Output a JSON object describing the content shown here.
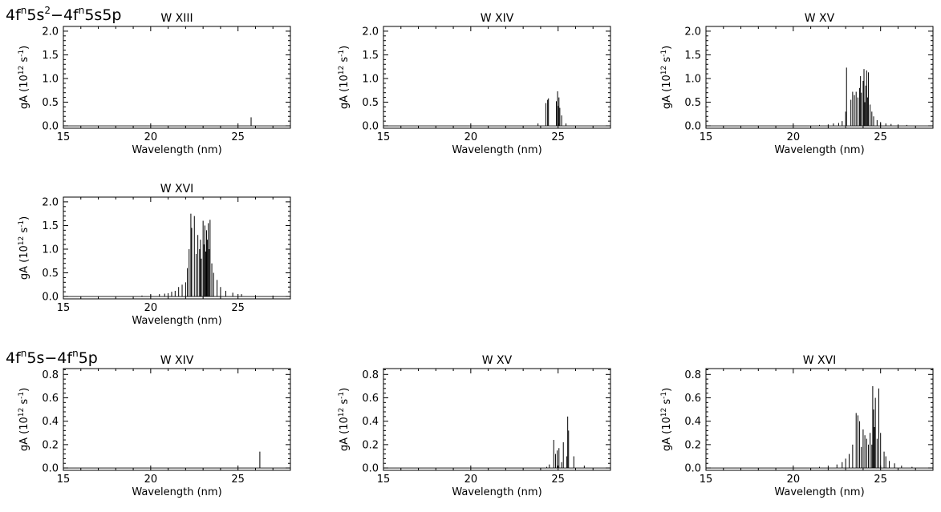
{
  "figure": {
    "group_labels": [
      {
        "base": "4f",
        "sup1": "n",
        "mid1": "5s",
        "sup2": "2",
        "mid2": "−4f",
        "sup3": "n",
        "tail": "5s5p"
      },
      {
        "base": "4f",
        "sup1": "n",
        "mid1": "5s−4f",
        "sup2": "n",
        "mid2": "5p",
        "sup3": "",
        "tail": ""
      }
    ]
  },
  "chart_data": [
    {
      "type": "bar",
      "title": "W XIII",
      "xlabel": "Wavelength (nm)",
      "ylabel": "gA (10^12 s^-1)",
      "xlim": [
        15,
        28
      ],
      "ylim": [
        -0.05,
        2.1
      ],
      "xticks": [
        15,
        20,
        25
      ],
      "yticks": [
        0.0,
        0.5,
        1.0,
        1.5,
        2.0
      ],
      "x": [
        25.75
      ],
      "values": [
        0.18
      ]
    },
    {
      "type": "bar",
      "title": "W XIV",
      "xlabel": "Wavelength (nm)",
      "ylabel": "gA (10^12 s^-1)",
      "xlim": [
        15,
        28
      ],
      "ylim": [
        -0.05,
        2.1
      ],
      "xticks": [
        15,
        20,
        25
      ],
      "yticks": [
        0.0,
        0.5,
        1.0,
        1.5,
        2.0
      ],
      "x": [
        23.85,
        24.3,
        24.4,
        24.45,
        24.9,
        24.97,
        25.0,
        25.05,
        25.1,
        25.2,
        25.45
      ],
      "values": [
        0.05,
        0.48,
        0.55,
        0.58,
        0.52,
        0.73,
        0.42,
        0.6,
        0.38,
        0.22,
        0.05
      ]
    },
    {
      "type": "bar",
      "title": "W XV",
      "xlabel": "Wavelength (nm)",
      "ylabel": "gA (10^12 s^-1)",
      "xlim": [
        15,
        28
      ],
      "ylim": [
        -0.05,
        2.1
      ],
      "xticks": [
        15,
        20,
        25
      ],
      "yticks": [
        0.0,
        0.5,
        1.0,
        1.5,
        2.0
      ],
      "x": [
        21.5,
        22.0,
        22.3,
        22.6,
        22.8,
        23.0,
        23.05,
        23.3,
        23.4,
        23.5,
        23.6,
        23.7,
        23.8,
        23.85,
        23.9,
        24.0,
        24.05,
        24.1,
        24.15,
        24.2,
        24.25,
        24.3,
        24.4,
        24.5,
        24.6,
        24.8,
        25.0,
        25.3,
        25.6,
        26.0,
        26.5
      ],
      "values": [
        0.02,
        0.03,
        0.05,
        0.06,
        0.1,
        0.3,
        1.23,
        0.55,
        0.72,
        0.65,
        0.72,
        0.6,
        0.8,
        1.05,
        0.7,
        0.95,
        1.2,
        0.5,
        0.85,
        1.17,
        0.6,
        1.13,
        0.45,
        0.3,
        0.2,
        0.12,
        0.08,
        0.05,
        0.04,
        0.03,
        0.02
      ]
    },
    {
      "type": "bar",
      "title": "W XVI",
      "xlabel": "Wavelength (nm)",
      "ylabel": "gA (10^12 s^-1)",
      "xlim": [
        15,
        28
      ],
      "ylim": [
        -0.05,
        2.1
      ],
      "xticks": [
        15,
        20,
        25
      ],
      "yticks": [
        0.0,
        0.5,
        1.0,
        1.5,
        2.0
      ],
      "x": [
        19.5,
        20.0,
        20.5,
        20.8,
        21.0,
        21.2,
        21.4,
        21.6,
        21.8,
        22.0,
        22.1,
        22.2,
        22.3,
        22.35,
        22.5,
        22.6,
        22.7,
        22.8,
        22.85,
        22.9,
        23.0,
        23.05,
        23.1,
        23.15,
        23.2,
        23.25,
        23.3,
        23.35,
        23.4,
        23.5,
        23.6,
        23.8,
        24.0,
        24.3,
        24.7,
        25.2,
        26.0,
        27.0
      ],
      "values": [
        0.02,
        0.03,
        0.05,
        0.06,
        0.07,
        0.1,
        0.12,
        0.2,
        0.25,
        0.3,
        0.6,
        1.0,
        1.75,
        1.45,
        1.7,
        0.9,
        1.3,
        1.0,
        1.2,
        0.8,
        1.6,
        1.1,
        1.5,
        0.95,
        1.4,
        1.2,
        1.55,
        1.0,
        1.62,
        0.7,
        0.5,
        0.35,
        0.2,
        0.12,
        0.08,
        0.05,
        0.03,
        0.02
      ]
    },
    {
      "type": "bar",
      "title": "W XIV",
      "xlabel": "Wavelength (nm)",
      "ylabel": "gA (10^12 s^-1)",
      "xlim": [
        15,
        28
      ],
      "ylim": [
        -0.02,
        0.85
      ],
      "xticks": [
        15,
        20,
        25
      ],
      "yticks": [
        0.0,
        0.2,
        0.4,
        0.6,
        0.8
      ],
      "x": [
        26.25
      ],
      "values": [
        0.14
      ]
    },
    {
      "type": "bar",
      "title": "W XV",
      "xlabel": "Wavelength (nm)",
      "ylabel": "gA (10^12 s^-1)",
      "xlim": [
        15,
        28
      ],
      "ylim": [
        -0.02,
        0.85
      ],
      "xticks": [
        15,
        20,
        25
      ],
      "yticks": [
        0.0,
        0.2,
        0.4,
        0.6,
        0.8
      ],
      "x": [
        24.35,
        24.5,
        24.75,
        24.85,
        24.95,
        25.05,
        25.2,
        25.3,
        25.5,
        25.55,
        25.6,
        25.9,
        26.5
      ],
      "values": [
        0.01,
        0.03,
        0.24,
        0.12,
        0.15,
        0.17,
        0.05,
        0.22,
        0.1,
        0.44,
        0.32,
        0.1,
        0.02
      ]
    },
    {
      "type": "bar",
      "title": "W XVI",
      "xlabel": "Wavelength (nm)",
      "ylabel": "gA (10^12 s^-1)",
      "xlim": [
        15,
        28
      ],
      "ylim": [
        -0.02,
        0.85
      ],
      "xticks": [
        15,
        20,
        25
      ],
      "yticks": [
        0.0,
        0.2,
        0.4,
        0.6,
        0.8
      ],
      "x": [
        21.5,
        22.0,
        22.5,
        22.8,
        23.0,
        23.2,
        23.4,
        23.6,
        23.7,
        23.8,
        23.9,
        24.0,
        24.1,
        24.2,
        24.3,
        24.4,
        24.5,
        24.55,
        24.6,
        24.65,
        24.7,
        24.8,
        24.9,
        25.0,
        25.2,
        25.3,
        25.5,
        25.8,
        26.2,
        26.8
      ],
      "values": [
        0.01,
        0.02,
        0.03,
        0.05,
        0.08,
        0.12,
        0.2,
        0.47,
        0.45,
        0.4,
        0.18,
        0.33,
        0.28,
        0.25,
        0.2,
        0.3,
        0.2,
        0.7,
        0.5,
        0.35,
        0.6,
        0.25,
        0.68,
        0.3,
        0.14,
        0.1,
        0.06,
        0.04,
        0.02,
        0.01
      ]
    }
  ]
}
